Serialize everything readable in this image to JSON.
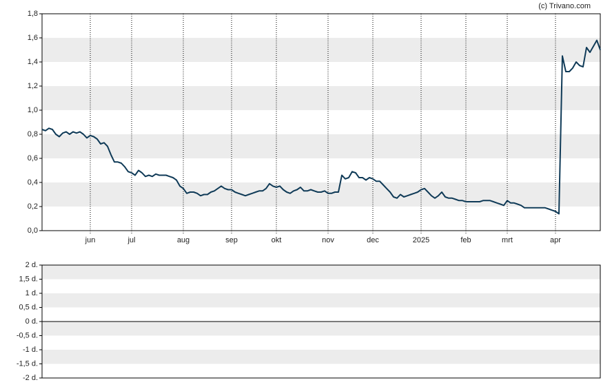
{
  "copyright": "(c) Trivano.com",
  "chart_data": [
    {
      "type": "line",
      "color": "#0f3a57",
      "grid": true,
      "xlim": [
        0,
        162
      ],
      "xticks": [
        {
          "value": 14,
          "label": "jun"
        },
        {
          "value": 26,
          "label": "jul"
        },
        {
          "value": 41,
          "label": "aug"
        },
        {
          "value": 55,
          "label": "sep"
        },
        {
          "value": 68,
          "label": "okt"
        },
        {
          "value": 83,
          "label": "nov"
        },
        {
          "value": 96,
          "label": "dec"
        },
        {
          "value": 110,
          "label": "2025"
        },
        {
          "value": 123,
          "label": "feb"
        },
        {
          "value": 135,
          "label": "mrt"
        },
        {
          "value": 149,
          "label": "apr"
        }
      ],
      "ylim": [
        0,
        1.8
      ],
      "yticks": [
        {
          "value": 0,
          "label": "0,0"
        },
        {
          "value": 0.2,
          "label": "0,2"
        },
        {
          "value": 0.4,
          "label": "0,4"
        },
        {
          "value": 0.6,
          "label": "0,6"
        },
        {
          "value": 0.8,
          "label": "0,8"
        },
        {
          "value": 1.0,
          "label": "1,0"
        },
        {
          "value": 1.2,
          "label": "1,2"
        },
        {
          "value": 1.4,
          "label": "1,4"
        },
        {
          "value": 1.6,
          "label": "1,6"
        },
        {
          "value": 1.8,
          "label": "1,8"
        }
      ],
      "values": [
        0.84,
        0.83,
        0.85,
        0.84,
        0.8,
        0.78,
        0.81,
        0.82,
        0.8,
        0.82,
        0.81,
        0.82,
        0.8,
        0.77,
        0.79,
        0.78,
        0.76,
        0.72,
        0.73,
        0.7,
        0.63,
        0.57,
        0.57,
        0.56,
        0.53,
        0.49,
        0.48,
        0.46,
        0.5,
        0.48,
        0.45,
        0.46,
        0.45,
        0.47,
        0.46,
        0.46,
        0.46,
        0.45,
        0.44,
        0.42,
        0.37,
        0.35,
        0.31,
        0.32,
        0.32,
        0.31,
        0.29,
        0.3,
        0.3,
        0.32,
        0.33,
        0.35,
        0.37,
        0.35,
        0.34,
        0.34,
        0.32,
        0.31,
        0.3,
        0.29,
        0.3,
        0.31,
        0.32,
        0.33,
        0.33,
        0.35,
        0.39,
        0.37,
        0.36,
        0.37,
        0.34,
        0.32,
        0.31,
        0.33,
        0.34,
        0.36,
        0.33,
        0.33,
        0.34,
        0.33,
        0.32,
        0.32,
        0.33,
        0.31,
        0.31,
        0.32,
        0.32,
        0.46,
        0.43,
        0.44,
        0.49,
        0.48,
        0.44,
        0.44,
        0.42,
        0.44,
        0.43,
        0.41,
        0.41,
        0.38,
        0.35,
        0.32,
        0.28,
        0.27,
        0.3,
        0.28,
        0.29,
        0.3,
        0.31,
        0.32,
        0.34,
        0.35,
        0.32,
        0.29,
        0.27,
        0.29,
        0.32,
        0.28,
        0.27,
        0.27,
        0.26,
        0.25,
        0.25,
        0.24,
        0.24,
        0.24,
        0.24,
        0.24,
        0.25,
        0.25,
        0.25,
        0.24,
        0.23,
        0.22,
        0.21,
        0.25,
        0.23,
        0.23,
        0.22,
        0.21,
        0.19,
        0.19,
        0.19,
        0.19,
        0.19,
        0.19,
        0.19,
        0.18,
        0.17,
        0.16,
        0.14,
        1.45,
        1.32,
        1.32,
        1.35,
        1.4,
        1.37,
        1.36,
        1.52,
        1.48,
        1.53,
        1.58,
        1.5
      ]
    },
    {
      "type": "line",
      "grid": true,
      "zero_line": true,
      "ylim": [
        -2,
        2
      ],
      "yticks": [
        {
          "value": -2,
          "label": "-2 d."
        },
        {
          "value": -1.5,
          "label": "-1,5 d."
        },
        {
          "value": -1,
          "label": "-1 d."
        },
        {
          "value": -0.5,
          "label": "-0,5 d."
        },
        {
          "value": 0,
          "label": "0 d."
        },
        {
          "value": 0.5,
          "label": "0,5 d."
        },
        {
          "value": 1,
          "label": "1 d."
        },
        {
          "value": 1.5,
          "label": "1,5 d."
        },
        {
          "value": 2,
          "label": "2 d."
        }
      ]
    }
  ]
}
